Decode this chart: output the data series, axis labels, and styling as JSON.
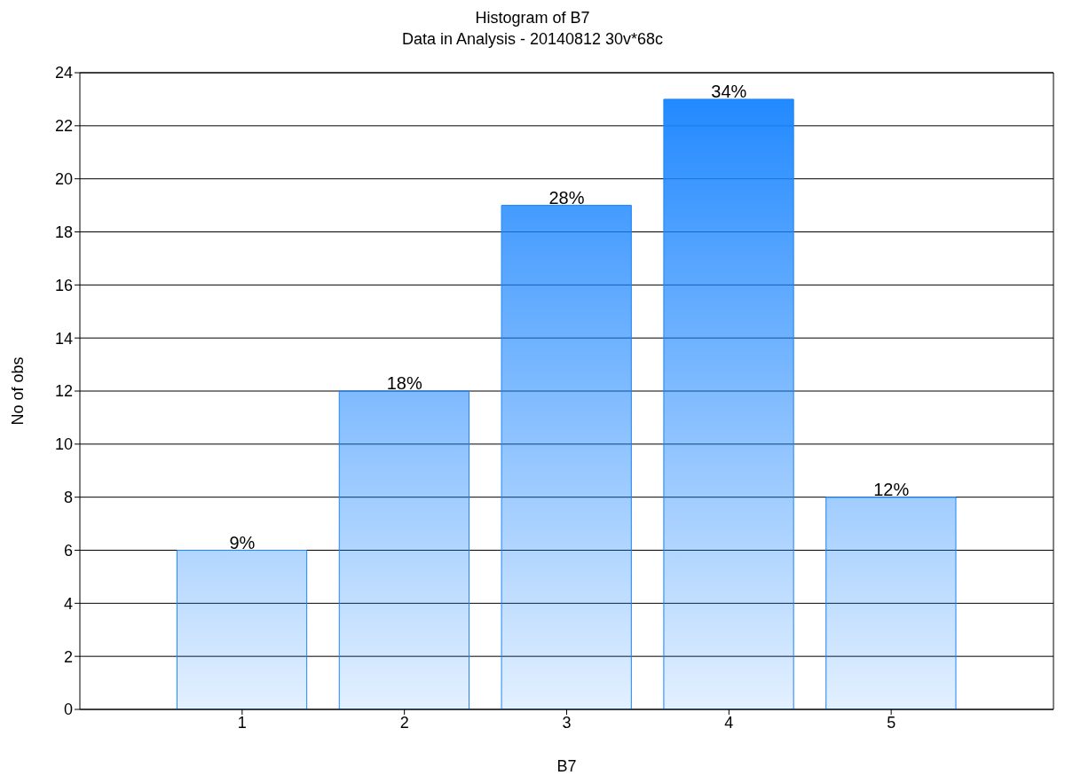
{
  "chart_data": {
    "type": "bar",
    "title": "Histogram of B7",
    "subtitle": "Data in Analysis - 20140812 30v*68c",
    "xlabel": "B7",
    "ylabel": "No of obs",
    "x": [
      1,
      2,
      3,
      4,
      5
    ],
    "values": [
      6,
      12,
      19,
      23,
      8
    ],
    "color": "#1a85ff",
    "annotations": [
      {
        "text": "9%",
        "x": 1,
        "y": 6
      },
      {
        "text": "18%",
        "x": 2,
        "y": 12
      },
      {
        "text": "28%",
        "x": 3,
        "y": 19
      },
      {
        "text": "34%",
        "x": 4,
        "y": 23
      },
      {
        "text": "12%",
        "x": 5,
        "y": 8
      }
    ],
    "xlim": [
      0,
      6
    ],
    "xticks": [
      1,
      2,
      3,
      4,
      5
    ],
    "ylim": [
      0,
      24
    ],
    "yticks": [
      0,
      2,
      4,
      6,
      8,
      10,
      12,
      14,
      16,
      18,
      20,
      22,
      24
    ],
    "grid": "y"
  }
}
